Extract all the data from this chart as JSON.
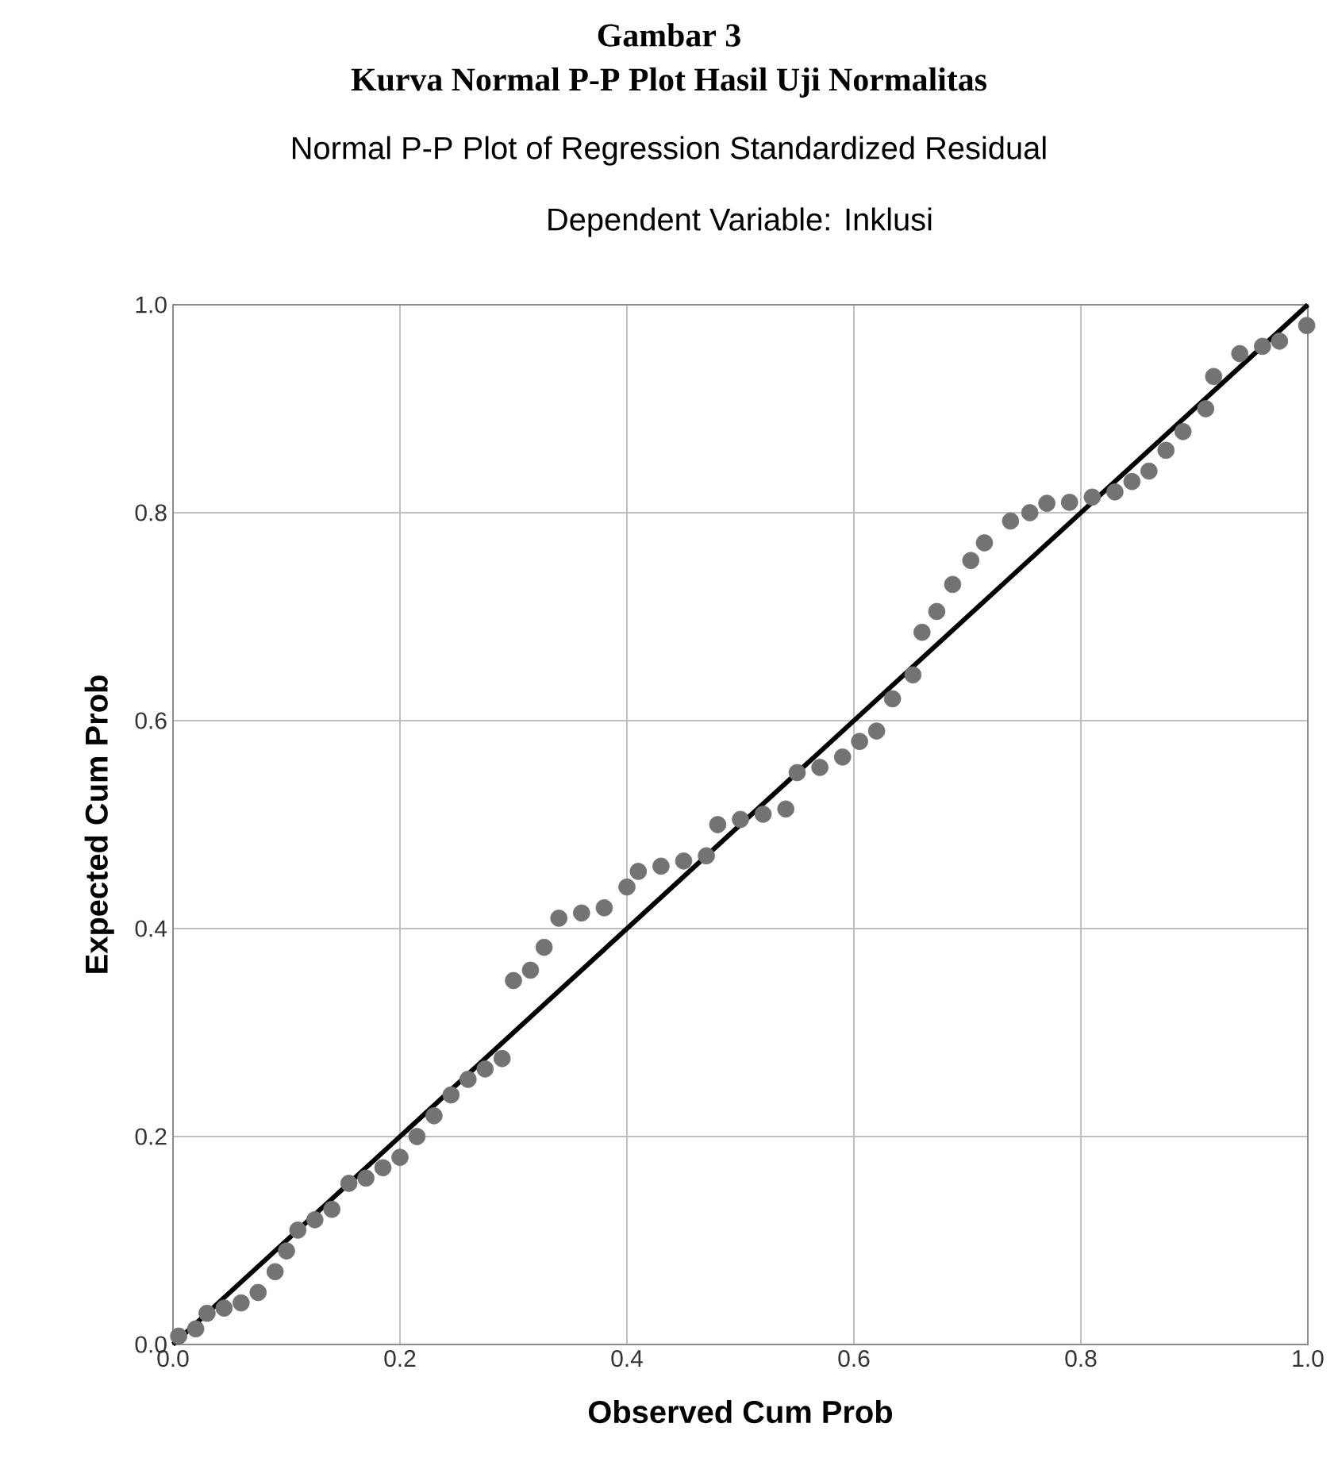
{
  "chart_data": {
    "type": "scatter",
    "title": "Normal P-P Plot of Regression Standardized Residual",
    "subtitle": "Dependent Variable: Inklusi",
    "xlabel": "Observed Cum Prob",
    "ylabel": "Expected Cum Prob",
    "annotations": [
      "Gambar 3",
      "Kurva Normal P-P Plot Hasil Uji Normalitas"
    ],
    "xlim": [
      0,
      1
    ],
    "ylim": [
      0,
      1
    ],
    "xticks": [
      {
        "value": 0,
        "label": "0.0"
      },
      {
        "value": 0.2,
        "label": "0.2"
      },
      {
        "value": 0.4,
        "label": "0.4"
      },
      {
        "value": 0.6,
        "label": "0.6"
      },
      {
        "value": 0.8,
        "label": "0.8"
      },
      {
        "value": 1,
        "label": "1.0"
      }
    ],
    "yticks": [
      {
        "value": 0,
        "label": "0.0"
      },
      {
        "value": 0.2,
        "label": "0.2"
      },
      {
        "value": 0.4,
        "label": "0.4"
      },
      {
        "value": 0.6,
        "label": "0.6"
      },
      {
        "value": 0.8,
        "label": "0.8"
      },
      {
        "value": 1,
        "label": "1.0"
      }
    ],
    "grid": true,
    "series": [
      {
        "marker": "circle",
        "color": "#737373",
        "x": [
          0.005,
          0.02,
          0.03,
          0.045,
          0.06,
          0.075,
          0.09,
          0.1,
          0.11,
          0.125,
          0.14,
          0.155,
          0.17,
          0.185,
          0.2,
          0.215,
          0.23,
          0.245,
          0.26,
          0.275,
          0.29,
          0.3,
          0.315,
          0.327,
          0.34,
          0.36,
          0.38,
          0.4,
          0.41,
          0.43,
          0.45,
          0.47,
          0.48,
          0.5,
          0.52,
          0.54,
          0.55,
          0.57,
          0.59,
          0.605,
          0.62,
          0.634,
          0.652,
          0.66,
          0.673,
          0.687,
          0.703,
          0.715,
          0.738,
          0.755,
          0.77,
          0.79,
          0.81,
          0.83,
          0.845,
          0.86,
          0.875,
          0.89,
          0.91,
          0.917,
          0.94,
          0.96,
          0.975,
          0.999
        ],
        "values": [
          0.008,
          0.015,
          0.03,
          0.035,
          0.04,
          0.05,
          0.07,
          0.09,
          0.11,
          0.12,
          0.13,
          0.155,
          0.16,
          0.17,
          0.18,
          0.2,
          0.22,
          0.24,
          0.255,
          0.265,
          0.275,
          0.35,
          0.36,
          0.382,
          0.41,
          0.415,
          0.42,
          0.44,
          0.455,
          0.46,
          0.465,
          0.47,
          0.5,
          0.505,
          0.51,
          0.515,
          0.55,
          0.555,
          0.565,
          0.58,
          0.59,
          0.621,
          0.644,
          0.685,
          0.705,
          0.731,
          0.754,
          0.771,
          0.792,
          0.8,
          0.809,
          0.81,
          0.815,
          0.82,
          0.83,
          0.84,
          0.86,
          0.878,
          0.9,
          0.931,
          0.953,
          0.96,
          0.965,
          0.98
        ]
      },
      {
        "type": "line",
        "marker": "none",
        "line_style": "solid",
        "color": "#000000",
        "x": [
          0,
          1
        ],
        "values": [
          0,
          1
        ]
      }
    ]
  }
}
